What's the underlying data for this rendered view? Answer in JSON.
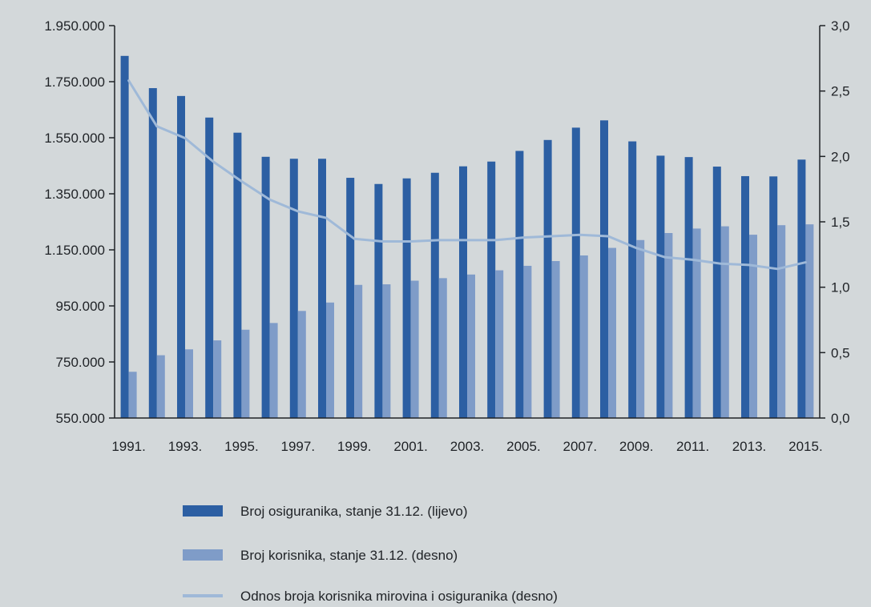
{
  "chart_data": {
    "type": "bar",
    "categories": [
      "1991.",
      "1992.",
      "1993.",
      "1994.",
      "1995.",
      "1996.",
      "1997.",
      "1998.",
      "1999.",
      "2000.",
      "2001.",
      "2002.",
      "2003.",
      "2004.",
      "2005.",
      "2006.",
      "2007.",
      "2008.",
      "2009.",
      "2010.",
      "2011.",
      "2012.",
      "2013.",
      "2014.",
      "2015."
    ],
    "x_tick_labels": [
      "1991.",
      "1993.",
      "1995.",
      "1997.",
      "1999.",
      "2001.",
      "2003.",
      "2005.",
      "2007.",
      "2009.",
      "2011.",
      "2013.",
      "2015."
    ],
    "y_left": {
      "range": [
        550000,
        1950000
      ],
      "ticks": [
        550000,
        750000,
        950000,
        1150000,
        1350000,
        1550000,
        1750000,
        1950000
      ],
      "tick_labels": [
        "550.000",
        "750.000",
        "950.000",
        "1.150.000",
        "1.350.000",
        "1.550.000",
        "1.750.000",
        "1.950.000"
      ]
    },
    "y_right": {
      "range": [
        0,
        3
      ],
      "ticks": [
        0,
        0.5,
        1,
        1.5,
        2,
        2.5,
        3
      ],
      "tick_labels": [
        "0,0",
        "0,5",
        "1,0",
        "1,5",
        "2,0",
        "2,5",
        "3,0"
      ]
    },
    "series": [
      {
        "name": "Broj osiguranika, stanje 31.12. (lijevo)",
        "type": "bar",
        "axis": "left",
        "color": "#2c5fa3",
        "values": [
          1842000,
          1727000,
          1699000,
          1622000,
          1568000,
          1482000,
          1475000,
          1475000,
          1407000,
          1385000,
          1405000,
          1425000,
          1448000,
          1465000,
          1503000,
          1542000,
          1586000,
          1612000,
          1537000,
          1486000,
          1481000,
          1447000,
          1413000,
          1412000,
          1472000
        ]
      },
      {
        "name": "Broj korisnika, stanje 31.12. (desno)",
        "type": "bar",
        "axis": "left",
        "color": "#7f9cc8",
        "values": [
          715000,
          774000,
          795000,
          827000,
          865000,
          889000,
          932000,
          962000,
          1025000,
          1027000,
          1040000,
          1049000,
          1062000,
          1077000,
          1093000,
          1110000,
          1130000,
          1157000,
          1185000,
          1210000,
          1226000,
          1234000,
          1204000,
          1238000,
          1241000
        ]
      },
      {
        "name": "Odnos broja korisnika mirovina i osiguranika (desno)",
        "type": "line",
        "axis": "right",
        "color": "#9fb9d8",
        "values": [
          2.58,
          2.23,
          2.14,
          1.96,
          1.81,
          1.67,
          1.58,
          1.53,
          1.37,
          1.35,
          1.35,
          1.36,
          1.36,
          1.36,
          1.38,
          1.39,
          1.4,
          1.39,
          1.3,
          1.23,
          1.21,
          1.18,
          1.17,
          1.14,
          1.19
        ]
      }
    ],
    "grid": false,
    "legend_position": "bottom"
  }
}
